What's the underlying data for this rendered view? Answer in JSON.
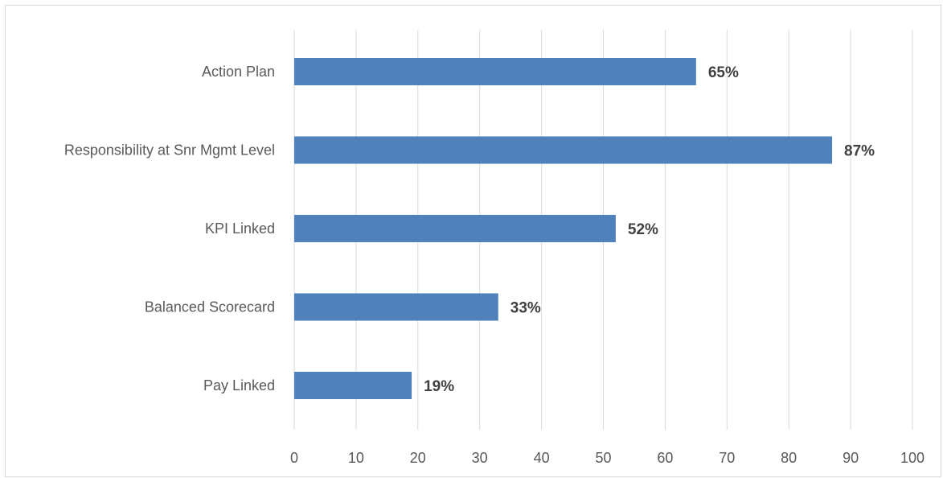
{
  "chart_data": {
    "type": "bar",
    "orientation": "horizontal",
    "categories": [
      "Action Plan",
      "Responsibility at Snr Mgmt Level",
      "KPI Linked",
      "Balanced Scorecard",
      "Pay Linked"
    ],
    "values": [
      65,
      87,
      52,
      33,
      19
    ],
    "data_labels": [
      "65%",
      "87%",
      "52%",
      "33%",
      "19%"
    ],
    "xlim": [
      0,
      100
    ],
    "x_ticks": [
      "0",
      "10",
      "20",
      "30",
      "40",
      "50",
      "60",
      "70",
      "80",
      "90",
      "100"
    ],
    "grid": "vertical",
    "legend": "none",
    "title": "",
    "xlabel": "",
    "ylabel": "",
    "colors": {
      "bar": "#4f81bd",
      "gridline": "#d9d9d9",
      "label_text": "#595959",
      "data_label_text": "#404040"
    }
  }
}
